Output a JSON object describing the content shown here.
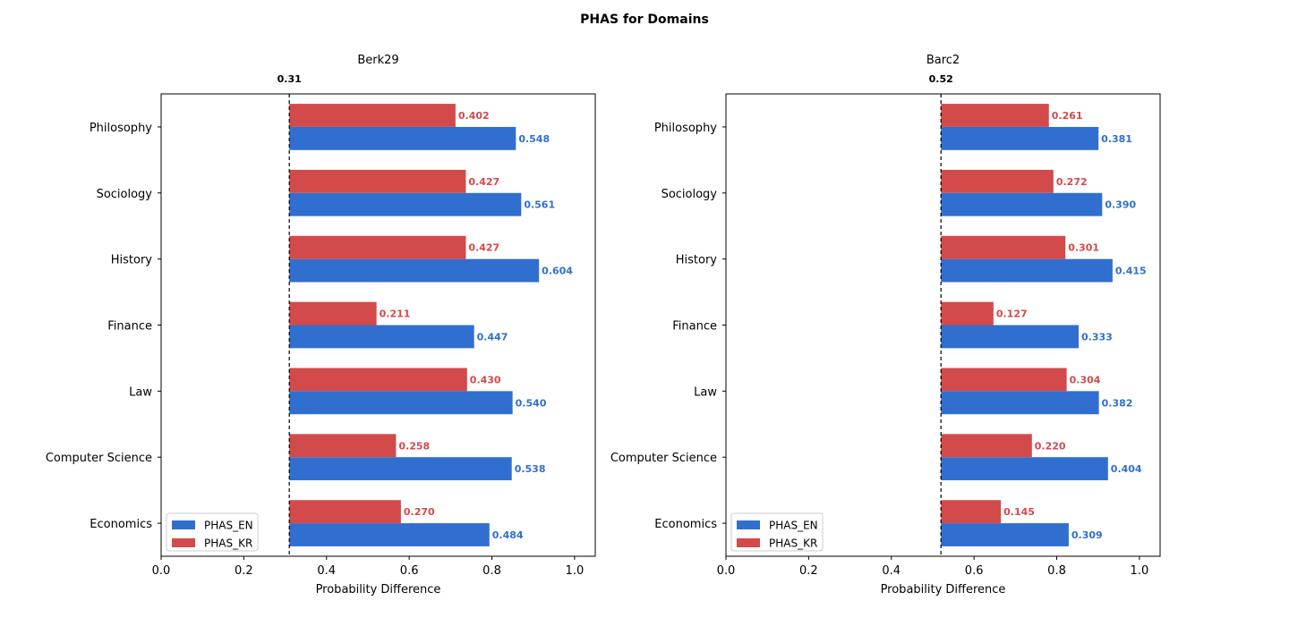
{
  "title": "PHAS for Domains",
  "colors": {
    "en": "#306fd0",
    "kr": "#d34a4a"
  },
  "chart_data": [
    {
      "type": "bar",
      "orientation": "horizontal",
      "title": "Berk29",
      "xlabel": "Probability Difference",
      "ylabel": "",
      "xlim": [
        0.0,
        1.05
      ],
      "xticks": [
        "0.0",
        "0.2",
        "0.4",
        "0.6",
        "0.8",
        "1.0"
      ],
      "categories": [
        "Philosophy",
        "Sociology",
        "History",
        "Finance",
        "Law",
        "Computer Science",
        "Economics"
      ],
      "baseline": 0.31,
      "baseline_label": "0.31",
      "legend_position": "lower-left",
      "series": [
        {
          "name": "PHAS_EN",
          "color_key": "en",
          "values": [
            0.548,
            0.561,
            0.604,
            0.447,
            0.54,
            0.538,
            0.484
          ],
          "labels": [
            "0.548",
            "0.561",
            "0.604",
            "0.447",
            "0.540",
            "0.538",
            "0.484"
          ]
        },
        {
          "name": "PHAS_KR",
          "color_key": "kr",
          "values": [
            0.402,
            0.427,
            0.427,
            0.211,
            0.43,
            0.258,
            0.27
          ],
          "labels": [
            "0.402",
            "0.427",
            "0.427",
            "0.211",
            "0.430",
            "0.258",
            "0.270"
          ]
        }
      ]
    },
    {
      "type": "bar",
      "orientation": "horizontal",
      "title": "Barc2",
      "xlabel": "Probability Difference",
      "ylabel": "",
      "xlim": [
        0.0,
        1.05
      ],
      "xticks": [
        "0.0",
        "0.2",
        "0.4",
        "0.6",
        "0.8",
        "1.0"
      ],
      "categories": [
        "Philosophy",
        "Sociology",
        "History",
        "Finance",
        "Law",
        "Computer Science",
        "Economics"
      ],
      "baseline": 0.52,
      "baseline_label": "0.52",
      "legend_position": "lower-left",
      "series": [
        {
          "name": "PHAS_EN",
          "color_key": "en",
          "values": [
            0.381,
            0.39,
            0.415,
            0.333,
            0.382,
            0.404,
            0.309
          ],
          "labels": [
            "0.381",
            "0.390",
            "0.415",
            "0.333",
            "0.382",
            "0.404",
            "0.309"
          ]
        },
        {
          "name": "PHAS_KR",
          "color_key": "kr",
          "values": [
            0.261,
            0.272,
            0.301,
            0.127,
            0.304,
            0.22,
            0.145
          ],
          "labels": [
            "0.261",
            "0.272",
            "0.301",
            "0.127",
            "0.304",
            "0.220",
            "0.145"
          ]
        }
      ]
    }
  ]
}
